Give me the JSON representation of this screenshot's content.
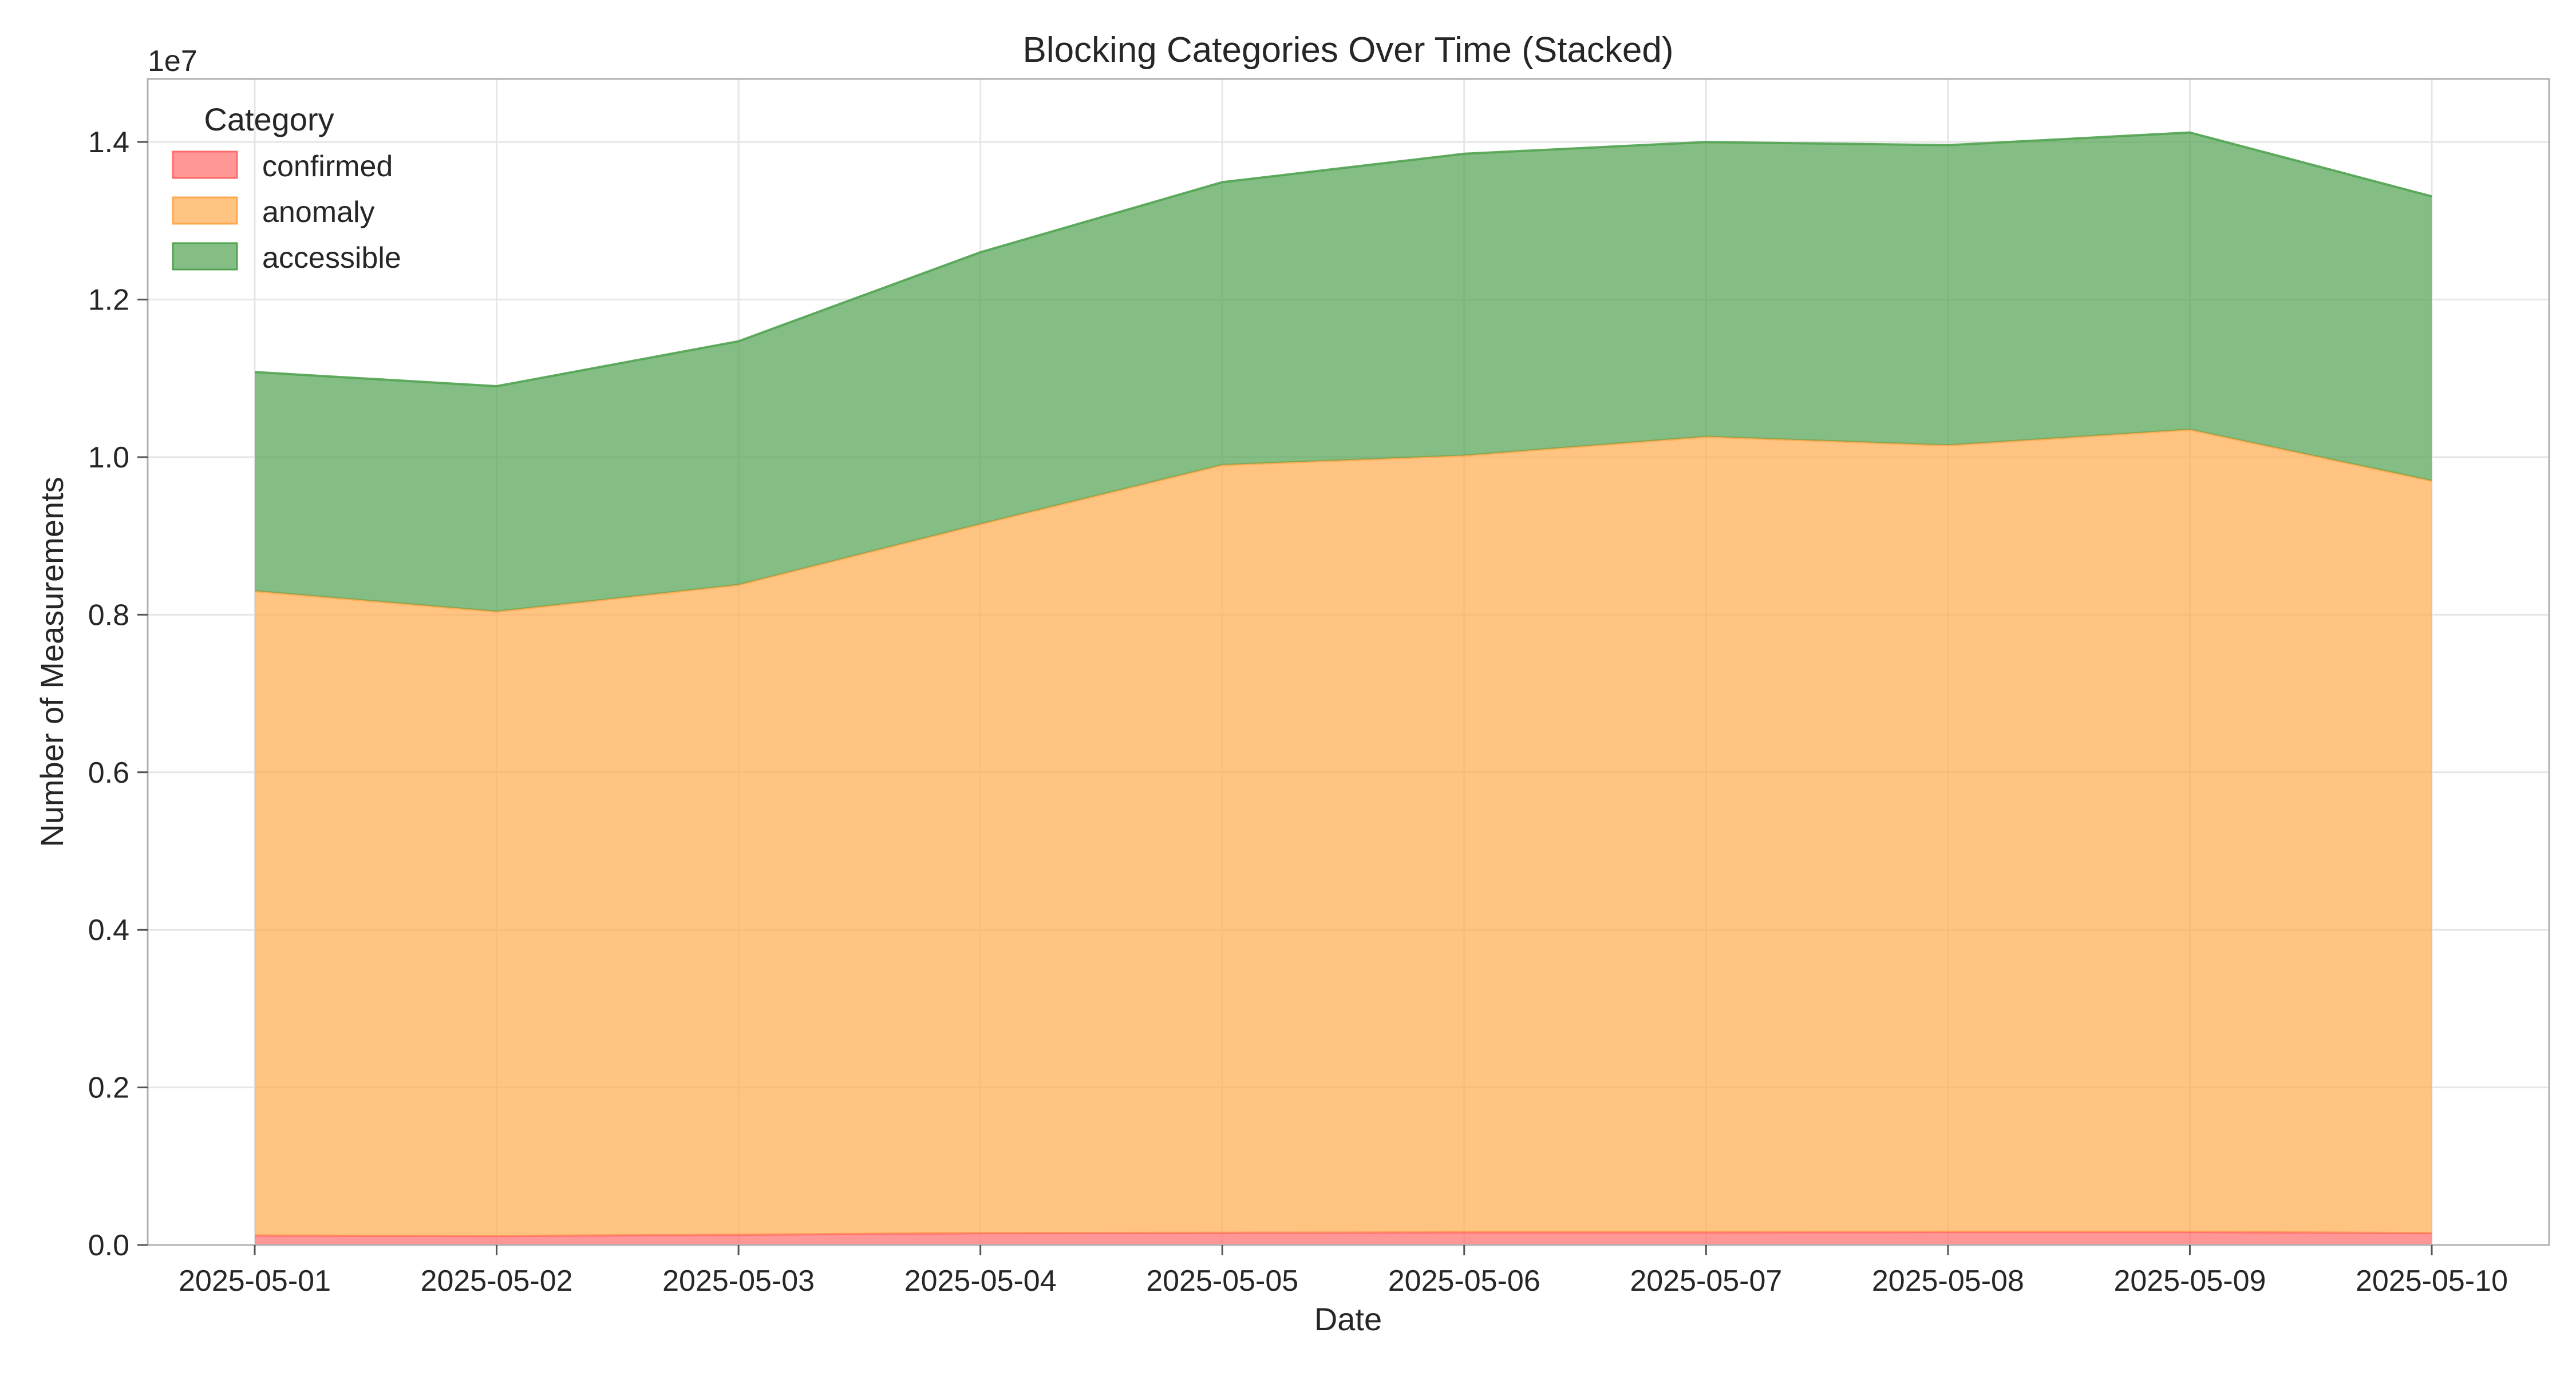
{
  "chart_data": {
    "type": "area",
    "stacked": true,
    "title": "Blocking Categories Over Time (Stacked)",
    "xlabel": "Date",
    "ylabel": "Number of Measurements",
    "y_offset_label": "1e7",
    "y_scale_factor": 10000000,
    "x": [
      "2025-05-01",
      "2025-05-02",
      "2025-05-03",
      "2025-05-04",
      "2025-05-05",
      "2025-05-06",
      "2025-05-07",
      "2025-05-08",
      "2025-05-09",
      "2025-05-10"
    ],
    "ylim": [
      0,
      14800000
    ],
    "yticks": [
      0,
      2000000,
      4000000,
      6000000,
      8000000,
      10000000,
      12000000,
      14000000
    ],
    "ytick_labels": [
      "0.0",
      "0.2",
      "0.4",
      "0.6",
      "0.8",
      "1.0",
      "1.2",
      "1.4"
    ],
    "grid": true,
    "legend": {
      "title": "Category",
      "placement": "top-left"
    },
    "series": [
      {
        "name": "confirmed",
        "color": "#ff6b6b",
        "values": [
          120000,
          115000,
          130000,
          150000,
          155000,
          160000,
          160000,
          165000,
          165000,
          150000
        ]
      },
      {
        "name": "anomaly",
        "color": "#ffa94d",
        "values": [
          8180000,
          7925000,
          8250000,
          9000000,
          9745000,
          9860000,
          10100000,
          9985000,
          10185000,
          9550000
        ]
      },
      {
        "name": "accessible",
        "color": "#51a351",
        "values": [
          2780000,
          2860000,
          3090000,
          3450000,
          3590000,
          3830000,
          3740000,
          3810000,
          3770000,
          3610000
        ]
      }
    ]
  }
}
